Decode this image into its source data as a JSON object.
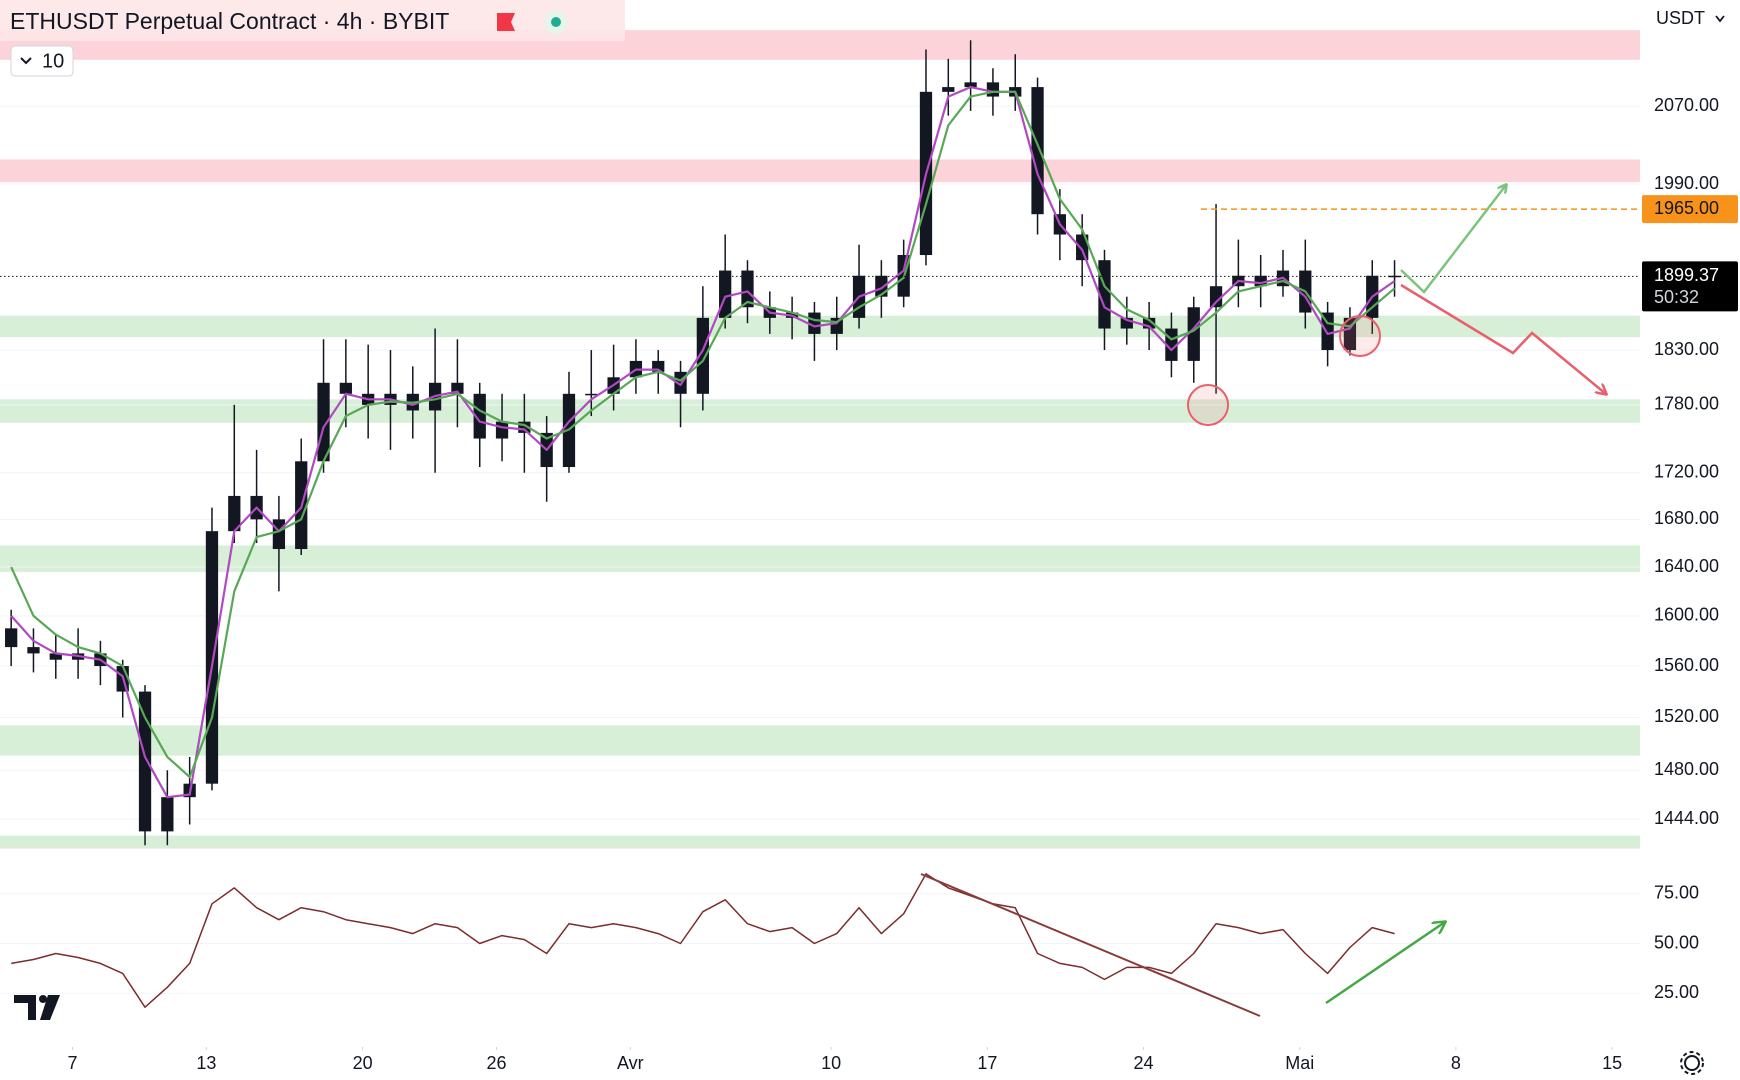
{
  "header": {
    "title": "ETHUSDT Perpetual Contract · 4h · BYBIT",
    "interval_chip": "10",
    "currency": "USDT"
  },
  "chart_data": [
    {
      "type": "candlestick",
      "scale": "log",
      "ylim": [
        1423,
        2184
      ],
      "xlim": [
        0,
        73.5
      ],
      "yticks": [
        {
          "value": 2070,
          "label": "2070.00"
        },
        {
          "value": 1990,
          "label": "1990.00"
        },
        {
          "value": 1830,
          "label": "1830.00"
        },
        {
          "value": 1780,
          "label": "1780.00"
        },
        {
          "value": 1720,
          "label": "1720.00"
        },
        {
          "value": 1680,
          "label": "1680.00"
        },
        {
          "value": 1640,
          "label": "1640.00"
        },
        {
          "value": 1600,
          "label": "1600.00"
        },
        {
          "value": 1560,
          "label": "1560.00"
        },
        {
          "value": 1520,
          "label": "1520.00"
        },
        {
          "value": 1480,
          "label": "1480.00"
        },
        {
          "value": 1444,
          "label": "1444.00"
        }
      ],
      "candles": {
        "color": "#131722",
        "x": [
          0.5,
          1.5,
          2.5,
          3.5,
          4.5,
          5.5,
          6.5,
          7.5,
          8.5,
          9.5,
          10.5,
          11.5,
          12.5,
          13.5,
          14.5,
          15.5,
          16.5,
          17.5,
          18.5,
          19.5,
          20.5,
          21.5,
          22.5,
          23.5,
          24.5,
          25.5,
          26.5,
          27.5,
          28.5,
          29.5,
          30.5,
          31.5,
          32.5,
          33.5,
          34.5,
          35.5,
          36.5,
          37.5,
          38.5,
          39.5,
          40.5,
          41.5,
          42.5,
          43.5,
          44.5,
          45.5,
          46.5,
          47.5,
          48.5,
          49.5,
          50.5,
          51.5,
          52.5,
          53.5,
          54.5,
          55.5,
          56.5,
          57.5,
          58.5,
          59.5,
          60.5,
          61.5,
          62.5
        ],
        "open": [
          1590,
          1575,
          1570,
          1565,
          1570,
          1560,
          1540,
          1435,
          1460,
          1470,
          1670,
          1700,
          1680,
          1655,
          1730,
          1800,
          1790,
          1780,
          1790,
          1775,
          1800,
          1790,
          1750,
          1765,
          1755,
          1725,
          1790,
          1790,
          1805,
          1820,
          1810,
          1790,
          1860,
          1905,
          1870,
          1860,
          1865,
          1845,
          1860,
          1900,
          1880,
          1920,
          2085,
          2090,
          2095,
          2080,
          2090,
          1960,
          1940,
          1915,
          1850,
          1860,
          1850,
          1820,
          1870,
          1890,
          1900,
          1890,
          1905,
          1865,
          1830,
          1860,
          1900
        ],
        "high": [
          1605,
          1590,
          1585,
          1590,
          1580,
          1565,
          1545,
          1480,
          1490,
          1690,
          1780,
          1740,
          1700,
          1750,
          1840,
          1840,
          1835,
          1830,
          1815,
          1850,
          1840,
          1800,
          1790,
          1790,
          1770,
          1810,
          1830,
          1835,
          1840,
          1830,
          1820,
          1890,
          1940,
          1915,
          1885,
          1880,
          1875,
          1880,
          1930,
          1915,
          1935,
          2130,
          2120,
          2140,
          2110,
          2125,
          2100,
          1985,
          1960,
          1925,
          1880,
          1875,
          1865,
          1880,
          1970,
          1935,
          1920,
          1925,
          1935,
          1875,
          1870,
          1915,
          1915
        ],
        "low": [
          1560,
          1555,
          1550,
          1550,
          1545,
          1520,
          1425,
          1425,
          1440,
          1465,
          1660,
          1660,
          1620,
          1650,
          1720,
          1760,
          1750,
          1740,
          1750,
          1720,
          1760,
          1725,
          1730,
          1720,
          1695,
          1720,
          1770,
          1775,
          1790,
          1790,
          1760,
          1775,
          1850,
          1855,
          1845,
          1840,
          1820,
          1830,
          1850,
          1860,
          1870,
          1910,
          2060,
          2065,
          2060,
          2065,
          1940,
          1915,
          1890,
          1830,
          1835,
          1830,
          1805,
          1800,
          1790,
          1870,
          1870,
          1880,
          1850,
          1815,
          1825,
          1845,
          1880
        ],
        "close": [
          1575,
          1570,
          1565,
          1570,
          1560,
          1540,
          1435,
          1460,
          1470,
          1670,
          1700,
          1680,
          1655,
          1730,
          1800,
          1790,
          1780,
          1790,
          1775,
          1800,
          1790,
          1750,
          1765,
          1755,
          1725,
          1790,
          1790,
          1805,
          1820,
          1810,
          1790,
          1860,
          1905,
          1870,
          1860,
          1865,
          1845,
          1860,
          1900,
          1880,
          1920,
          2085,
          2090,
          2095,
          2080,
          2090,
          1960,
          1940,
          1915,
          1850,
          1860,
          1850,
          1820,
          1870,
          1890,
          1900,
          1890,
          1905,
          1865,
          1830,
          1860,
          1900,
          1899.37
        ]
      },
      "series": [
        {
          "color": "#b049c2",
          "values": [
            1600,
            1580,
            1570,
            1568,
            1565,
            1552,
            1490,
            1460,
            1462,
            1560,
            1670,
            1690,
            1670,
            1690,
            1760,
            1790,
            1785,
            1785,
            1780,
            1788,
            1792,
            1765,
            1760,
            1758,
            1740,
            1765,
            1785,
            1798,
            1812,
            1812,
            1798,
            1830,
            1880,
            1885,
            1865,
            1862,
            1852,
            1855,
            1880,
            1888,
            1905,
            2000,
            2080,
            2090,
            2085,
            2085,
            2000,
            1950,
            1925,
            1870,
            1858,
            1852,
            1830,
            1850,
            1875,
            1895,
            1893,
            1898,
            1880,
            1845,
            1850,
            1880,
            1895
          ]
        },
        {
          "color": "#58a858",
          "values": [
            1640,
            1600,
            1585,
            1575,
            1570,
            1560,
            1520,
            1490,
            1475,
            1520,
            1620,
            1665,
            1670,
            1680,
            1730,
            1770,
            1780,
            1783,
            1782,
            1785,
            1790,
            1775,
            1765,
            1762,
            1750,
            1758,
            1775,
            1790,
            1805,
            1810,
            1802,
            1820,
            1860,
            1875,
            1870,
            1865,
            1858,
            1856,
            1870,
            1882,
            1898,
            1970,
            2050,
            2080,
            2085,
            2085,
            2030,
            1975,
            1945,
            1890,
            1868,
            1858,
            1840,
            1848,
            1865,
            1885,
            1890,
            1895,
            1885,
            1855,
            1852,
            1870,
            1888
          ]
        }
      ],
      "zones": [
        {
          "low": 2119,
          "high": 2151,
          "color": "#fcd3d8"
        },
        {
          "low": 1992,
          "high": 2015,
          "color": "#fcd3d8"
        },
        {
          "low": 1842,
          "high": 1862,
          "color": "#d6efd6"
        },
        {
          "low": 1764,
          "high": 1785,
          "color": "#d6efd6"
        },
        {
          "low": 1636,
          "high": 1658,
          "color": "#d6efd6"
        },
        {
          "low": 1491,
          "high": 1514,
          "color": "#d6efd6"
        },
        {
          "low": 1423,
          "high": 1432,
          "color": "#d6efd6"
        }
      ],
      "alert_line": {
        "value": 1965,
        "label": "1965.00",
        "color": "#f7931a"
      },
      "last_price": {
        "value": 1899.37,
        "label": "1899.37",
        "countdown": "50:32"
      }
    },
    {
      "type": "line",
      "ylim": [
        0,
        91
      ],
      "xlim": [
        0,
        73.5
      ],
      "yticks": [
        {
          "value": 75,
          "label": "75.00"
        },
        {
          "value": 50,
          "label": "50.00"
        },
        {
          "value": 25,
          "label": "25.00"
        }
      ],
      "xticks": [
        {
          "value": 3.25,
          "label": "7"
        },
        {
          "value": 9.25,
          "label": "13"
        },
        {
          "value": 16.25,
          "label": "20"
        },
        {
          "value": 22.25,
          "label": "26"
        },
        {
          "value": 28.25,
          "label": "Avr"
        },
        {
          "value": 37.25,
          "label": "10"
        },
        {
          "value": 44.25,
          "label": "17"
        },
        {
          "value": 51.25,
          "label": "24"
        },
        {
          "value": 58.25,
          "label": "Mai"
        },
        {
          "value": 65.25,
          "label": "8"
        },
        {
          "value": 72.25,
          "label": "15"
        }
      ],
      "color": "#7b2d2d",
      "x": [
        0.5,
        1.5,
        2.5,
        3.5,
        4.5,
        5.5,
        6.5,
        7.5,
        8.5,
        9.5,
        10.5,
        11.5,
        12.5,
        13.5,
        14.5,
        15.5,
        16.5,
        17.5,
        18.5,
        19.5,
        20.5,
        21.5,
        22.5,
        23.5,
        24.5,
        25.5,
        26.5,
        27.5,
        28.5,
        29.5,
        30.5,
        31.5,
        32.5,
        33.5,
        34.5,
        35.5,
        36.5,
        37.5,
        38.5,
        39.5,
        40.5,
        41.5,
        42.5,
        43.5,
        44.5,
        45.5,
        46.5,
        47.5,
        48.5,
        49.5,
        50.5,
        51.5,
        52.5,
        53.5,
        54.5,
        55.5,
        56.5,
        57.5,
        58.5,
        59.5,
        60.5,
        61.5,
        62.5
      ],
      "values": [
        40,
        42,
        45,
        43,
        40,
        35,
        18,
        28,
        40,
        70,
        78,
        68,
        62,
        68,
        66,
        62,
        60,
        58,
        55,
        60,
        58,
        50,
        54,
        52,
        45,
        60,
        58,
        60,
        58,
        55,
        50,
        66,
        72,
        60,
        56,
        58,
        50,
        55,
        68,
        55,
        65,
        85,
        78,
        74,
        70,
        68,
        45,
        40,
        38,
        32,
        38,
        38,
        35,
        45,
        60,
        58,
        55,
        57,
        45,
        35,
        48,
        58,
        55
      ]
    }
  ]
}
